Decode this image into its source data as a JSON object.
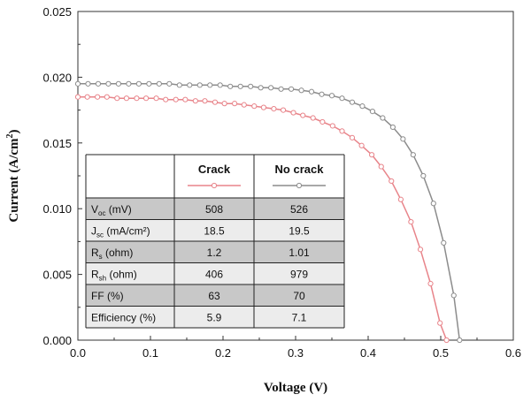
{
  "chart_data": {
    "type": "line",
    "xlabel": "Voltage (V)",
    "ylabel": {
      "main": "Current (A/cm",
      "sup": "2",
      "tail": ")"
    },
    "xlim": [
      0.0,
      0.6
    ],
    "ylim": [
      0.0,
      0.025
    ],
    "x_ticks": [
      "0.0",
      "0.1",
      "0.2",
      "0.3",
      "0.4",
      "0.5",
      "0.6"
    ],
    "y_ticks": [
      "0.000",
      "0.005",
      "0.010",
      "0.015",
      "0.020",
      "0.025"
    ],
    "grid": false,
    "series": [
      {
        "name": "Crack",
        "color": "#e8848a",
        "marker": "open-circle",
        "x": [
          0.0,
          0.013,
          0.027,
          0.04,
          0.054,
          0.067,
          0.081,
          0.094,
          0.108,
          0.121,
          0.135,
          0.148,
          0.162,
          0.175,
          0.189,
          0.202,
          0.216,
          0.229,
          0.243,
          0.256,
          0.27,
          0.283,
          0.297,
          0.31,
          0.324,
          0.337,
          0.351,
          0.364,
          0.378,
          0.391,
          0.405,
          0.418,
          0.432,
          0.445,
          0.459,
          0.472,
          0.486,
          0.499,
          0.508
        ],
        "y": [
          0.0185,
          0.0185,
          0.0185,
          0.0185,
          0.0184,
          0.0184,
          0.0184,
          0.0184,
          0.0184,
          0.0183,
          0.0183,
          0.0183,
          0.0182,
          0.0182,
          0.0181,
          0.018,
          0.018,
          0.0179,
          0.0178,
          0.0177,
          0.0176,
          0.0175,
          0.0173,
          0.0171,
          0.0169,
          0.0166,
          0.0163,
          0.0159,
          0.0154,
          0.0148,
          0.0141,
          0.0132,
          0.0121,
          0.0107,
          0.009,
          0.0069,
          0.0043,
          0.0013,
          0.0
        ]
      },
      {
        "name": "No crack",
        "color": "#8c8c8c",
        "marker": "open-circle",
        "x": [
          0.0,
          0.014,
          0.028,
          0.042,
          0.056,
          0.07,
          0.084,
          0.098,
          0.112,
          0.126,
          0.14,
          0.154,
          0.168,
          0.182,
          0.196,
          0.21,
          0.224,
          0.238,
          0.252,
          0.266,
          0.28,
          0.294,
          0.308,
          0.322,
          0.336,
          0.35,
          0.364,
          0.378,
          0.392,
          0.406,
          0.42,
          0.434,
          0.448,
          0.462,
          0.476,
          0.49,
          0.504,
          0.518,
          0.526
        ],
        "y": [
          0.0195,
          0.0195,
          0.0195,
          0.0195,
          0.0195,
          0.0195,
          0.0195,
          0.0195,
          0.0195,
          0.0195,
          0.0194,
          0.0194,
          0.0194,
          0.0194,
          0.0194,
          0.0193,
          0.0193,
          0.0193,
          0.0192,
          0.0192,
          0.0191,
          0.0191,
          0.019,
          0.0189,
          0.0187,
          0.0186,
          0.0184,
          0.0181,
          0.0178,
          0.0174,
          0.0169,
          0.0162,
          0.0153,
          0.0141,
          0.0125,
          0.0104,
          0.0074,
          0.0034,
          0.0
        ]
      }
    ],
    "table": {
      "headers": [
        "",
        "Crack",
        "No crack"
      ],
      "rows": [
        {
          "label_main": "V",
          "label_sub": "oc",
          "label_tail": " (mV)",
          "crack": "508",
          "no_crack": "526"
        },
        {
          "label_main": "J",
          "label_sub": "sc",
          "label_tail": " (mA/cm²)",
          "crack": "18.5",
          "no_crack": "19.5"
        },
        {
          "label_main": "R",
          "label_sub": "s",
          "label_tail": " (ohm)",
          "crack": "1.2",
          "no_crack": "1.01"
        },
        {
          "label_main": "R",
          "label_sub": "sh",
          "label_tail": " (ohm)",
          "crack": "406",
          "no_crack": "979"
        },
        {
          "label_main": "FF (%)",
          "label_sub": "",
          "label_tail": "",
          "crack": "63",
          "no_crack": "70"
        },
        {
          "label_main": "Efficiency (%)",
          "label_sub": "",
          "label_tail": "",
          "crack": "5.9",
          "no_crack": "7.1"
        }
      ]
    }
  }
}
